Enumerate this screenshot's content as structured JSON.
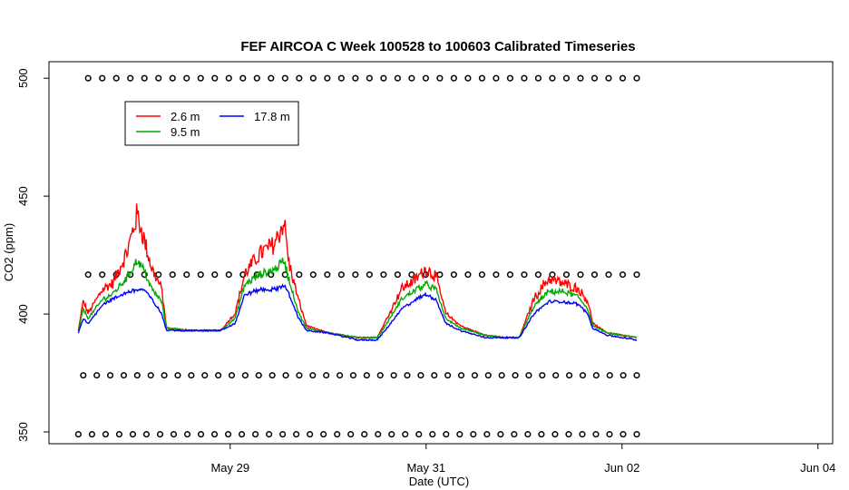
{
  "chart_data": {
    "type": "line",
    "title": "FEF AIRCOA C  Week 100528 to 100603  Calibrated Timeseries",
    "xlabel": "Date (UTC)",
    "ylabel": "CO2 (ppm)",
    "x_ticks": [
      "May 29",
      "May 31",
      "Jun 02",
      "Jun 04"
    ],
    "x_tick_days": [
      29,
      31,
      33,
      35
    ],
    "xlim": [
      27.15,
      35.15
    ],
    "y_ticks": [
      "350",
      "400",
      "450",
      "500"
    ],
    "y_tick_values": [
      350,
      400,
      450,
      500
    ],
    "ylim": [
      345,
      507
    ],
    "legend": {
      "placement": "top-left",
      "entries": [
        "2.6 m",
        "9.5 m",
        "17.8 m"
      ]
    },
    "grid": false,
    "series": [
      {
        "name": "2.6 m",
        "color": "#ff0000",
        "keypoints": [
          [
            27.45,
            393
          ],
          [
            27.5,
            405
          ],
          [
            27.55,
            400
          ],
          [
            27.7,
            410
          ],
          [
            27.8,
            412
          ],
          [
            27.95,
            425
          ],
          [
            28.05,
            440
          ],
          [
            28.12,
            430
          ],
          [
            28.2,
            418
          ],
          [
            28.3,
            410
          ],
          [
            28.35,
            394
          ],
          [
            28.6,
            393
          ],
          [
            28.9,
            393
          ],
          [
            29.05,
            400
          ],
          [
            29.15,
            416
          ],
          [
            29.3,
            424
          ],
          [
            29.45,
            428
          ],
          [
            29.55,
            437
          ],
          [
            29.6,
            420
          ],
          [
            29.7,
            405
          ],
          [
            29.78,
            395
          ],
          [
            30.0,
            392
          ],
          [
            30.3,
            390
          ],
          [
            30.5,
            390
          ],
          [
            30.6,
            398
          ],
          [
            30.75,
            410
          ],
          [
            30.9,
            414
          ],
          [
            31.0,
            418
          ],
          [
            31.1,
            415
          ],
          [
            31.2,
            400
          ],
          [
            31.35,
            395
          ],
          [
            31.6,
            391
          ],
          [
            31.8,
            390
          ],
          [
            31.95,
            390
          ],
          [
            32.1,
            406
          ],
          [
            32.25,
            414
          ],
          [
            32.4,
            412
          ],
          [
            32.55,
            410
          ],
          [
            32.65,
            405
          ],
          [
            32.7,
            396
          ],
          [
            32.85,
            392
          ],
          [
            33.0,
            391
          ],
          [
            33.15,
            390
          ]
        ],
        "noise": 5
      },
      {
        "name": "9.5 m",
        "color": "#00aa00",
        "keypoints": [
          [
            27.45,
            393
          ],
          [
            27.5,
            402
          ],
          [
            27.55,
            398
          ],
          [
            27.7,
            406
          ],
          [
            27.8,
            408
          ],
          [
            27.95,
            415
          ],
          [
            28.05,
            422
          ],
          [
            28.12,
            418
          ],
          [
            28.2,
            410
          ],
          [
            28.3,
            405
          ],
          [
            28.35,
            394
          ],
          [
            28.6,
            393
          ],
          [
            28.9,
            393
          ],
          [
            29.05,
            398
          ],
          [
            29.15,
            412
          ],
          [
            29.3,
            416
          ],
          [
            29.45,
            418
          ],
          [
            29.55,
            422
          ],
          [
            29.6,
            414
          ],
          [
            29.7,
            400
          ],
          [
            29.78,
            394
          ],
          [
            30.0,
            392
          ],
          [
            30.3,
            390
          ],
          [
            30.5,
            390
          ],
          [
            30.6,
            396
          ],
          [
            30.75,
            406
          ],
          [
            30.9,
            410
          ],
          [
            31.0,
            412
          ],
          [
            31.1,
            410
          ],
          [
            31.2,
            398
          ],
          [
            31.35,
            394
          ],
          [
            31.6,
            391
          ],
          [
            31.8,
            390
          ],
          [
            31.95,
            390
          ],
          [
            32.1,
            403
          ],
          [
            32.25,
            409
          ],
          [
            32.4,
            409
          ],
          [
            32.55,
            407
          ],
          [
            32.65,
            402
          ],
          [
            32.7,
            395
          ],
          [
            32.85,
            392
          ],
          [
            33.0,
            391
          ],
          [
            33.15,
            390
          ]
        ],
        "noise": 3
      },
      {
        "name": "17.8 m",
        "color": "#0000ff",
        "keypoints": [
          [
            27.45,
            392
          ],
          [
            27.5,
            398
          ],
          [
            27.55,
            396
          ],
          [
            27.7,
            404
          ],
          [
            27.8,
            406
          ],
          [
            27.95,
            409
          ],
          [
            28.05,
            410
          ],
          [
            28.12,
            410
          ],
          [
            28.2,
            406
          ],
          [
            28.3,
            400
          ],
          [
            28.35,
            393
          ],
          [
            28.6,
            393
          ],
          [
            28.9,
            393
          ],
          [
            29.05,
            396
          ],
          [
            29.15,
            408
          ],
          [
            29.3,
            410
          ],
          [
            29.45,
            410
          ],
          [
            29.55,
            412
          ],
          [
            29.6,
            408
          ],
          [
            29.7,
            398
          ],
          [
            29.78,
            393
          ],
          [
            30.0,
            392
          ],
          [
            30.3,
            389
          ],
          [
            30.5,
            389
          ],
          [
            30.6,
            394
          ],
          [
            30.75,
            402
          ],
          [
            30.9,
            406
          ],
          [
            31.0,
            408
          ],
          [
            31.1,
            406
          ],
          [
            31.2,
            396
          ],
          [
            31.35,
            393
          ],
          [
            31.6,
            390
          ],
          [
            31.8,
            390
          ],
          [
            31.95,
            390
          ],
          [
            32.1,
            400
          ],
          [
            32.25,
            405
          ],
          [
            32.4,
            405
          ],
          [
            32.55,
            404
          ],
          [
            32.65,
            400
          ],
          [
            32.7,
            394
          ],
          [
            32.85,
            391
          ],
          [
            33.0,
            390
          ],
          [
            33.15,
            389
          ]
        ],
        "noise": 2
      }
    ],
    "marker_rows": [
      {
        "y": 500,
        "x_start": 27.55,
        "x_end": 33.15,
        "count": 40
      },
      {
        "y": 416.7,
        "x_start": 27.55,
        "x_end": 33.15,
        "count": 40
      },
      {
        "y": 374,
        "x_start": 27.5,
        "x_end": 33.15,
        "count": 42
      },
      {
        "y": 349,
        "x_start": 27.45,
        "x_end": 33.15,
        "count": 42
      }
    ],
    "marker_color": "#000000"
  }
}
